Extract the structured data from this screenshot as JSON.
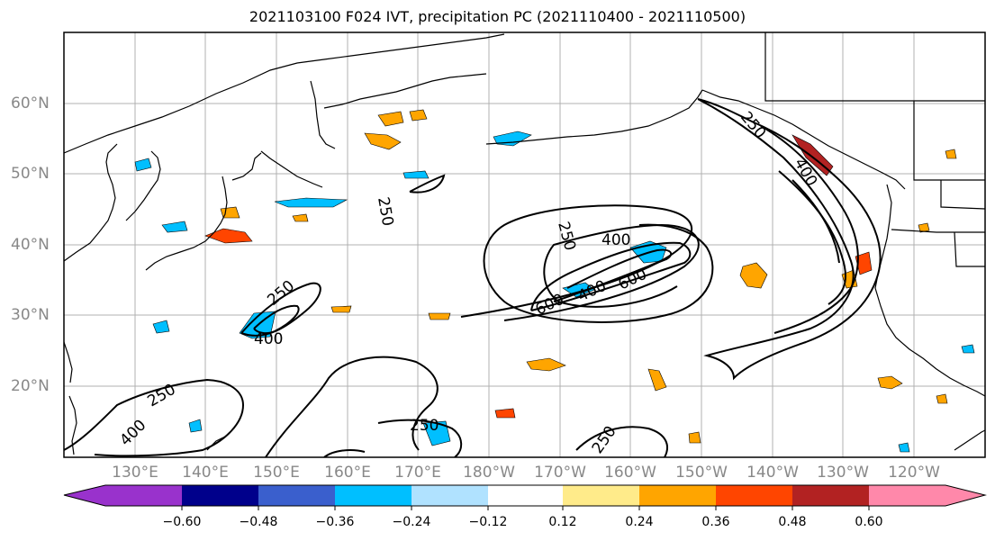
{
  "title": "2021103100 F024 IVT, precipitation PC (2021110400 - 2021110500)",
  "lon_labels": [
    "130°E",
    "140°E",
    "150°E",
    "160°E",
    "170°E",
    "180°W",
    "170°W",
    "160°W",
    "150°W",
    "140°W",
    "130°W",
    "120°W"
  ],
  "lat_labels": [
    "60°N",
    "50°N",
    "40°N",
    "30°N",
    "20°N"
  ],
  "contour_labels": [
    "250",
    "400",
    "600",
    "250",
    "400",
    "600",
    "250",
    "400",
    "250",
    "400",
    "250",
    "400",
    "250",
    "250"
  ],
  "colorbar": {
    "ticks": [
      "−0.60",
      "−0.48",
      "−0.36",
      "−0.24",
      "−0.12",
      "0.12",
      "0.24",
      "0.36",
      "0.48",
      "0.60"
    ],
    "colors": [
      "#9932cc",
      "#00008b",
      "#3a5fcd",
      "#00bfff",
      "#b0e2ff",
      "#ffffff",
      "#ffeb8a",
      "#ffa500",
      "#ff4500",
      "#b22222",
      "#ff88aa"
    ]
  }
}
